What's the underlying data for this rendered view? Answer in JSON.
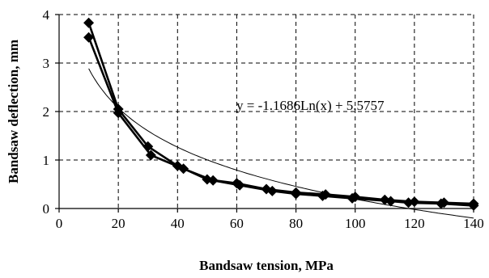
{
  "chart_data": {
    "type": "scatter",
    "title": "",
    "xlabel": "Bandsaw tension, MPa",
    "ylabel": "Bandsaw deflection, mm",
    "xlim": [
      0,
      140
    ],
    "ylim": [
      0,
      4
    ],
    "xticks": [
      "0",
      "20",
      "40",
      "60",
      "80",
      "100",
      "120",
      "140"
    ],
    "yticks": [
      "0",
      "1",
      "2",
      "3",
      "4"
    ],
    "grid": true,
    "series": [
      {
        "marker": "diamond",
        "x": [
          10,
          20,
          30,
          40,
          50,
          60,
          70,
          80,
          90,
          100,
          110,
          120,
          130,
          140
        ],
        "y": [
          3.83,
          2.05,
          1.28,
          0.88,
          0.6,
          0.52,
          0.4,
          0.33,
          0.29,
          0.24,
          0.18,
          0.14,
          0.12,
          0.1
        ]
      },
      {
        "marker": "diamond",
        "x": [
          10,
          20,
          31,
          42,
          52,
          61,
          72,
          80,
          89,
          99,
          112,
          118,
          129,
          140
        ],
        "y": [
          3.53,
          1.97,
          1.1,
          0.82,
          0.58,
          0.48,
          0.36,
          0.3,
          0.26,
          0.21,
          0.15,
          0.12,
          0.1,
          0.06
        ]
      }
    ],
    "trendline": {
      "type": "logarithmic",
      "equation": "y = -1.1686Ln(x) + 5.5757",
      "a": -1.1686,
      "b": 5.5757,
      "x_range": [
        10,
        140
      ]
    }
  }
}
